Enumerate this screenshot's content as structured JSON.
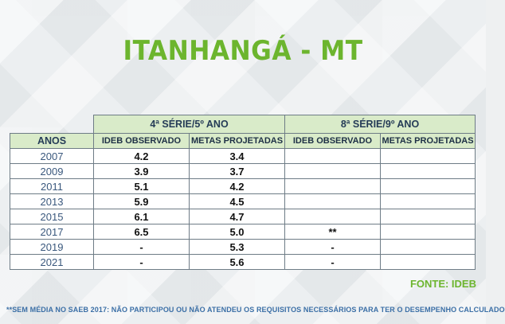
{
  "title": "ITANHANGÁ - MT",
  "table": {
    "group_headers": [
      "4ª SÉRIE/5º ANO",
      "8ª SÉRIE/9º ANO"
    ],
    "year_header": "ANOS",
    "sub_headers": [
      "IDEB OBSERVADO",
      "METAS PROJETADAS",
      "IDEB OBSERVADO",
      "METAS PROJETADAS"
    ],
    "rows": [
      [
        "2007",
        "4.2",
        "3.4",
        "",
        ""
      ],
      [
        "2009",
        "3.9",
        "3.7",
        "",
        ""
      ],
      [
        "2011",
        "5.1",
        "4.2",
        "",
        ""
      ],
      [
        "2013",
        "5.9",
        "4.5",
        "",
        ""
      ],
      [
        "2015",
        "6.1",
        "4.7",
        "",
        ""
      ],
      [
        "2017",
        "6.5",
        "5.0",
        "**",
        ""
      ],
      [
        "2019",
        "-",
        "5.3",
        "-",
        ""
      ],
      [
        "2021",
        "-",
        "5.6",
        "-",
        ""
      ]
    ]
  },
  "source": "FONTE: IDEB",
  "footnote": "**SEM MÉDIA NO SAEB 2017: NÃO PARTICIPOU OU NÃO ATENDEU OS REQUISITOS NECESSÁRIOS PARA TER O DESEMPENHO CALCULADO",
  "colors": {
    "accent_green": "#6cb52e",
    "header_fill": "#d9ebc9",
    "footnote_blue": "#3b6fa6"
  }
}
